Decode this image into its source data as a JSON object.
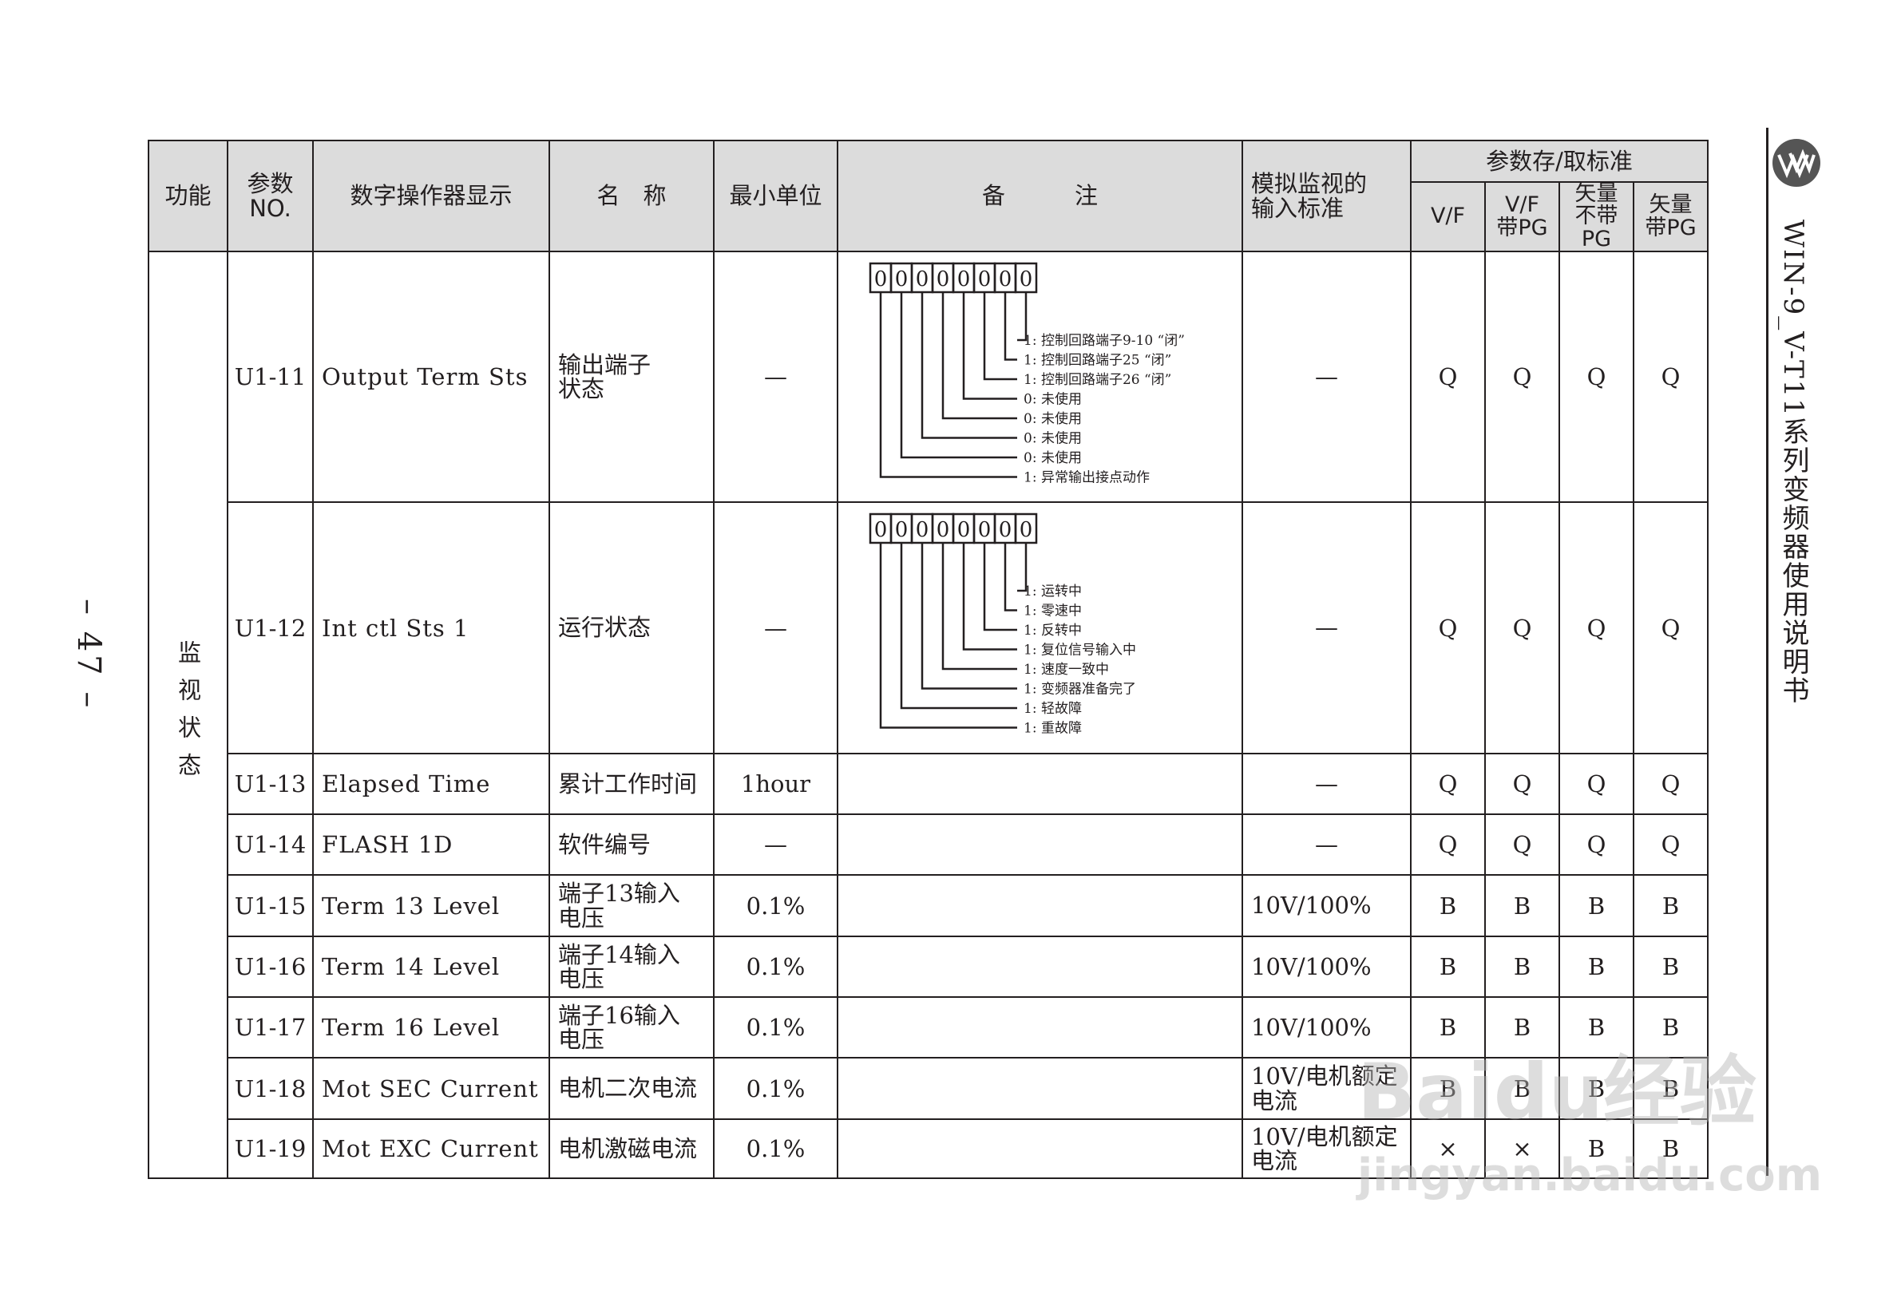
{
  "header": {
    "function": "功能",
    "param_no": "参数\nNO.",
    "operator_display": "数字操作器显示",
    "name": "名　称",
    "min_unit": "最小单位",
    "remarks": "备　　　注",
    "analog_standard": "模拟监视的\n输入标准",
    "access_standard": "参数存/取标准",
    "modes": [
      "V/F",
      "V/F\n带PG",
      "矢量\n不带PG",
      "矢量\n带PG"
    ]
  },
  "group_label": "监视状态",
  "rows": [
    {
      "no": "U1-11",
      "display": "Output Term Sts",
      "name": "输出端子\n状态",
      "unit": "—",
      "analog": "—",
      "access": [
        "Q",
        "Q",
        "Q",
        "Q"
      ],
      "diagram": {
        "bits": [
          "0",
          "0",
          "0",
          "0",
          "0",
          "0",
          "0",
          "0"
        ],
        "labels": [
          "1: 控制回路端子9-10 “闭”",
          "1: 控制回路端子25 “闭”",
          "1: 控制回路端子26 “闭”",
          "0: 未使用",
          "0: 未使用",
          "0: 未使用",
          "0: 未使用",
          "1: 异常输出接点动作"
        ]
      }
    },
    {
      "no": "U1-12",
      "display": "Int ctl Sts 1",
      "name": "运行状态",
      "unit": "—",
      "analog": "—",
      "access": [
        "Q",
        "Q",
        "Q",
        "Q"
      ],
      "diagram": {
        "bits": [
          "0",
          "0",
          "0",
          "0",
          "0",
          "0",
          "0",
          "0"
        ],
        "labels": [
          "1: 运转中",
          "1: 零速中",
          "1: 反转中",
          "1: 复位信号输入中",
          "1: 速度一致中",
          "1: 变频器准备完了",
          "1: 轻故障",
          "1: 重故障"
        ]
      }
    },
    {
      "no": "U1-13",
      "display": "Elapsed Time",
      "name": "累计工作时间",
      "unit": "1hour",
      "analog": "—",
      "access": [
        "Q",
        "Q",
        "Q",
        "Q"
      ]
    },
    {
      "no": "U1-14",
      "display": "FLASH 1D",
      "name": "软件编号",
      "unit": "—",
      "analog": "—",
      "access": [
        "Q",
        "Q",
        "Q",
        "Q"
      ]
    },
    {
      "no": "U1-15",
      "display": "Term 13 Level",
      "name": "端子13输入\n电压",
      "unit": "0.1%",
      "analog": "10V/100%",
      "access": [
        "B",
        "B",
        "B",
        "B"
      ]
    },
    {
      "no": "U1-16",
      "display": "Term 14 Level",
      "name": "端子14输入\n电压",
      "unit": "0.1%",
      "analog": "10V/100%",
      "access": [
        "B",
        "B",
        "B",
        "B"
      ]
    },
    {
      "no": "U1-17",
      "display": "Term 16 Level",
      "name": "端子16输入\n电压",
      "unit": "0.1%",
      "analog": "10V/100%",
      "access": [
        "B",
        "B",
        "B",
        "B"
      ]
    },
    {
      "no": "U1-18",
      "display": "Mot SEC Current",
      "name": "电机二次电流",
      "unit": "0.1%",
      "analog": "10V/电机额定\n电流",
      "access": [
        "B",
        "B",
        "B",
        "B"
      ]
    },
    {
      "no": "U1-19",
      "display": "Mot EXC Current",
      "name": "电机激磁电流",
      "unit": "0.1%",
      "analog": "10V/电机额定\n电流",
      "access": [
        "×",
        "×",
        "B",
        "B"
      ]
    }
  ],
  "side_title": "WIN-9_V-T11系列变频器使用说明书",
  "page_number": "– 47 –",
  "watermark": {
    "line1": "Baidu经验",
    "line2": "jingyan.baidu.com"
  }
}
